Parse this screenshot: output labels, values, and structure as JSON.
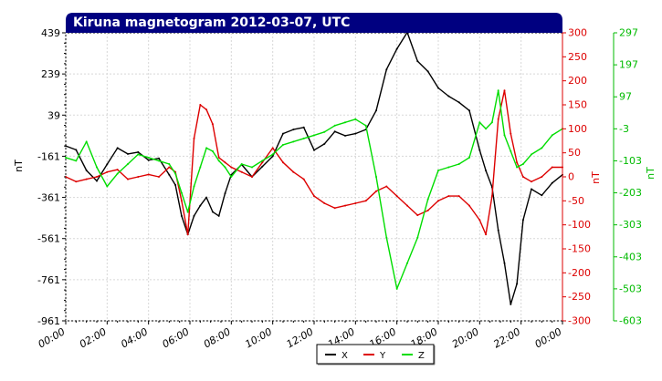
{
  "chart_data": {
    "type": "line",
    "title": "Kiruna magnetogram 2012-03-07, UTC",
    "x_unit": "hours UTC",
    "x_tick_labels": [
      "00:00",
      "02:00",
      "04:00",
      "06:00",
      "08:00",
      "10:00",
      "12:00",
      "14:00",
      "16:00",
      "18:00",
      "20:00",
      "22:00",
      "00:00"
    ],
    "xlim": [
      0,
      24
    ],
    "grid": true,
    "legend_placement": "bottom-center",
    "axes": {
      "left": {
        "label": "nT",
        "ylim": [
          -961,
          439
        ],
        "ticks": [
          439,
          239,
          39,
          -161,
          -361,
          -561,
          -761,
          -961
        ],
        "color": "#000000"
      },
      "right1": {
        "label": "nT",
        "ylim": [
          -300,
          300
        ],
        "ticks": [
          300,
          250,
          200,
          150,
          100,
          50,
          0,
          -50,
          -100,
          -150,
          -200,
          -250,
          -300
        ],
        "color": "#dd0000"
      },
      "right2": {
        "label": "nT",
        "ylim": [
          -603,
          297
        ],
        "ticks": [
          297,
          197,
          97,
          -3,
          -103,
          -203,
          -303,
          -403,
          -503,
          -603
        ],
        "color": "#00bb00"
      }
    },
    "series": [
      {
        "name": "X",
        "color": "#000000",
        "axis": "left",
        "x": [
          0,
          0.5,
          1,
          1.5,
          2,
          2.5,
          3,
          3.5,
          4,
          4.5,
          5,
          5.3,
          5.6,
          5.9,
          6.2,
          6.5,
          6.8,
          7.1,
          7.4,
          7.7,
          8,
          8.5,
          9,
          9.5,
          10,
          10.5,
          11,
          11.5,
          12,
          12.5,
          13,
          13.5,
          14,
          14.5,
          15,
          15.5,
          16,
          16.5,
          17,
          17.5,
          18,
          18.5,
          19,
          19.5,
          20,
          20.3,
          20.6,
          20.9,
          21.2,
          21.5,
          21.8,
          22.1,
          22.5,
          23,
          23.5,
          24
        ],
        "y": [
          -111,
          -130,
          -230,
          -281,
          -200,
          -121,
          -150,
          -141,
          -180,
          -171,
          -251,
          -301,
          -451,
          -541,
          -451,
          -401,
          -361,
          -431,
          -451,
          -341,
          -251,
          -201,
          -261,
          -211,
          -161,
          -51,
          -31,
          -21,
          -131,
          -101,
          -41,
          -61,
          -51,
          -31,
          61,
          261,
          361,
          441,
          301,
          251,
          171,
          131,
          101,
          61,
          -131,
          -231,
          -311,
          -521,
          -681,
          -881,
          -781,
          -471,
          -321,
          -351,
          -291,
          -251
        ]
      },
      {
        "name": "Y",
        "color": "#dd0000",
        "axis": "right1",
        "x": [
          0,
          0.5,
          1,
          1.5,
          2,
          2.5,
          3,
          3.5,
          4,
          4.5,
          5,
          5.3,
          5.6,
          5.9,
          6.2,
          6.5,
          6.8,
          7.1,
          7.4,
          7.7,
          8,
          8.5,
          9,
          9.5,
          10,
          10.5,
          11,
          11.5,
          12,
          12.5,
          13,
          13.5,
          14,
          14.5,
          15,
          15.5,
          16,
          16.5,
          17,
          17.5,
          18,
          18.5,
          19,
          19.5,
          20,
          20.3,
          20.6,
          20.9,
          21.2,
          21.5,
          21.8,
          22.1,
          22.5,
          23,
          23.5,
          24
        ],
        "y": [
          0,
          -10,
          -5,
          0,
          10,
          15,
          -5,
          0,
          5,
          0,
          20,
          10,
          -50,
          -120,
          80,
          150,
          140,
          110,
          40,
          30,
          20,
          10,
          0,
          30,
          60,
          30,
          10,
          -5,
          -40,
          -55,
          -65,
          -60,
          -55,
          -50,
          -30,
          -20,
          -40,
          -60,
          -80,
          -70,
          -50,
          -40,
          -40,
          -60,
          -90,
          -120,
          -40,
          120,
          180,
          90,
          30,
          0,
          -10,
          0,
          20,
          20
        ]
      },
      {
        "name": "Z",
        "color": "#00dd00",
        "axis": "right2",
        "x": [
          0,
          0.5,
          1,
          1.5,
          2,
          2.5,
          3,
          3.5,
          4,
          4.5,
          5,
          5.3,
          5.6,
          5.9,
          6.2,
          6.5,
          6.8,
          7.1,
          7.4,
          7.7,
          8,
          8.5,
          9,
          9.5,
          10,
          10.5,
          11,
          11.5,
          12,
          12.5,
          13,
          13.5,
          14,
          14.5,
          15,
          15.5,
          16,
          16.5,
          17,
          17.5,
          18,
          18.5,
          19,
          19.5,
          20,
          20.3,
          20.6,
          20.9,
          21.2,
          21.5,
          21.8,
          22.1,
          22.5,
          23,
          23.5,
          24
        ],
        "y": [
          -93,
          -103,
          -43,
          -123,
          -183,
          -143,
          -113,
          -83,
          -93,
          -103,
          -113,
          -143,
          -203,
          -263,
          -183,
          -123,
          -63,
          -73,
          -103,
          -123,
          -153,
          -113,
          -123,
          -103,
          -83,
          -53,
          -43,
          -33,
          -23,
          -13,
          7,
          17,
          27,
          7,
          -153,
          -343,
          -503,
          -423,
          -343,
          -223,
          -133,
          -123,
          -113,
          -93,
          17,
          -3,
          17,
          117,
          -23,
          -73,
          -123,
          -113,
          -83,
          -63,
          -23,
          -3
        ]
      }
    ]
  }
}
